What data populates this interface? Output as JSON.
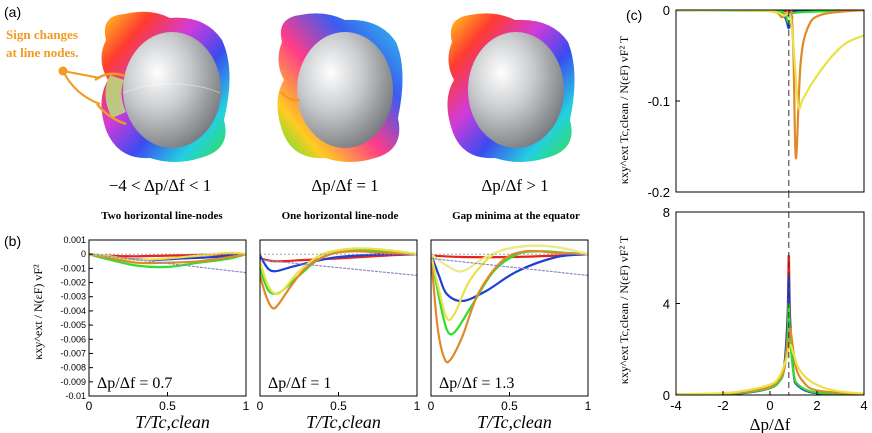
{
  "panel_labels": {
    "a": "(a)",
    "b": "(b)",
    "c": "(c)"
  },
  "annotation": {
    "line1": "Sign changes",
    "line2": "at line nodes."
  },
  "conditions": [
    {
      "label": "−4 < Δp/Δf < 1",
      "caption": "Two horizontal line-nodes"
    },
    {
      "label": "Δp/Δf = 1",
      "caption": "One horizontal line-node"
    },
    {
      "label": "Δp/Δf > 1",
      "caption": "Gap minima at the equator"
    }
  ],
  "colors": {
    "red": "#e8231e",
    "blue": "#1f3fd6",
    "green": "#2ede2a",
    "orange": "#e0892a",
    "yellow": "#e9e146",
    "pale_yellow": "#ecea8a",
    "dotted": "#8a8ac8",
    "annotation": "#f29a22"
  },
  "chart_data": [
    {
      "type": "line",
      "panel": "b",
      "ylabel": "κxy^ext / N(εF) vF² ",
      "xlabel": "T/Tc,clean",
      "xlim": [
        0,
        1
      ],
      "ylim": [
        -0.01,
        0.001
      ],
      "x_ticks": [
        "0",
        "0.5",
        "1"
      ],
      "y_ticks": [
        "0.001",
        "0",
        "-0.001",
        "-0.002",
        "-0.003",
        "-0.004",
        "-0.005",
        "-0.006",
        "-0.007",
        "-0.008",
        "-0.009",
        "-0.01"
      ],
      "subplots": [
        {
          "annotation": "Δp/Δf = 0.7",
          "series": [
            {
              "color": "red",
              "x": [
                0,
                0.1,
                0.3,
                0.5,
                0.7,
                1.0
              ],
              "y": [
                0,
                -0.0001,
                -0.00015,
                -0.0001,
                -5e-05,
                0
              ]
            },
            {
              "color": "blue",
              "x": [
                0,
                0.1,
                0.2,
                0.4,
                0.6,
                0.8,
                1.0
              ],
              "y": [
                0,
                -0.0002,
                -0.0003,
                -0.0004,
                -0.0003,
                -0.0002,
                0
              ]
            },
            {
              "color": "green",
              "x": [
                0,
                0.1,
                0.3,
                0.5,
                0.7,
                0.9,
                1.0
              ],
              "y": [
                0,
                -0.0003,
                -0.0008,
                -0.0009,
                -0.0006,
                -0.0003,
                0
              ]
            },
            {
              "color": "orange",
              "x": [
                0,
                0.1,
                0.3,
                0.5,
                0.7,
                0.9,
                1.0
              ],
              "y": [
                0,
                -0.0002,
                -0.0006,
                -0.0006,
                -0.0005,
                -0.0002,
                0
              ]
            },
            {
              "color": "yellow",
              "x": [
                0,
                0.1,
                0.3,
                0.5,
                0.7,
                0.9,
                1.0
              ],
              "y": [
                0,
                -0.0001,
                -0.0004,
                -0.0003,
                -0.0001,
                0.0001,
                0
              ]
            },
            {
              "color": "dotted",
              "x": [
                0,
                1.0
              ],
              "y": [
                0,
                -0.0013
              ]
            }
          ]
        },
        {
          "annotation": "Δp/Δf = 1",
          "series": [
            {
              "color": "red",
              "x": [
                0,
                0.1,
                0.3,
                0.5,
                0.8,
                1.0
              ],
              "y": [
                -0.0003,
                -0.0005,
                -0.0004,
                -0.0003,
                -0.0001,
                0
              ]
            },
            {
              "color": "blue",
              "x": [
                0,
                0.05,
                0.1,
                0.2,
                0.35,
                0.5,
                0.8,
                1.0
              ],
              "y": [
                -0.0001,
                -0.001,
                -0.0012,
                -0.0009,
                -0.0005,
                -0.0002,
                0,
                0
              ]
            },
            {
              "color": "green",
              "x": [
                0,
                0.05,
                0.1,
                0.15,
                0.25,
                0.4,
                0.6,
                0.8,
                1.0
              ],
              "y": [
                -0.001,
                -0.0025,
                -0.0028,
                -0.0025,
                -0.0015,
                -0.0002,
                0.0003,
                0.0002,
                0
              ]
            },
            {
              "color": "orange",
              "x": [
                0,
                0.04,
                0.08,
                0.12,
                0.2,
                0.3,
                0.45,
                0.6,
                0.8,
                1.0
              ],
              "y": [
                -0.0015,
                -0.003,
                -0.0038,
                -0.0035,
                -0.0022,
                -0.0009,
                0,
                0.0002,
                0.0001,
                0
              ]
            },
            {
              "color": "yellow",
              "x": [
                0,
                0.05,
                0.1,
                0.15,
                0.25,
                0.4,
                0.6,
                0.8,
                1.0
              ],
              "y": [
                -0.0005,
                -0.0022,
                -0.0028,
                -0.0025,
                -0.0012,
                0,
                0.0004,
                0.0003,
                0
              ]
            },
            {
              "color": "dotted",
              "x": [
                0,
                1.0
              ],
              "y": [
                -0.0004,
                -0.0015
              ]
            }
          ]
        },
        {
          "annotation": "Δp/Δf = 1.3",
          "series": [
            {
              "color": "red",
              "x": [
                0,
                0.2,
                0.5,
                0.8,
                1.0
              ],
              "y": [
                -0.0001,
                -0.0002,
                -0.0002,
                -0.0001,
                0
              ]
            },
            {
              "color": "blue",
              "x": [
                0,
                0.05,
                0.1,
                0.2,
                0.35,
                0.55,
                0.8,
                1.0
              ],
              "y": [
                0,
                -0.0015,
                -0.0028,
                -0.0033,
                -0.0026,
                -0.0012,
                -0.0002,
                0
              ]
            },
            {
              "color": "green",
              "x": [
                0,
                0.05,
                0.1,
                0.15,
                0.25,
                0.4,
                0.55,
                0.7,
                0.85,
                1.0
              ],
              "y": [
                0,
                -0.003,
                -0.0053,
                -0.0055,
                -0.0038,
                -0.0012,
                0,
                0.0002,
                0.0001,
                0
              ]
            },
            {
              "color": "orange",
              "x": [
                0,
                0.04,
                0.08,
                0.12,
                0.2,
                0.3,
                0.45,
                0.6,
                0.8,
                1.0
              ],
              "y": [
                0,
                -0.005,
                -0.0072,
                -0.0075,
                -0.0058,
                -0.0028,
                -0.0005,
                0.0002,
                0.0001,
                0
              ]
            },
            {
              "color": "yellow",
              "x": [
                0,
                0.05,
                0.1,
                0.15,
                0.25,
                0.4,
                0.55,
                0.7,
                0.85,
                1.0
              ],
              "y": [
                0,
                -0.0025,
                -0.0045,
                -0.0042,
                -0.0018,
                0,
                0.0005,
                0.0006,
                0.0004,
                0
              ]
            },
            {
              "color": "pale_yellow",
              "x": [
                0,
                0.1,
                0.2,
                0.35,
                0.5,
                0.7,
                0.85,
                1.0
              ],
              "y": [
                0,
                -0.0008,
                -0.0012,
                -0.0002,
                0.0004,
                0.0006,
                0.0004,
                0
              ]
            },
            {
              "color": "dotted",
              "x": [
                0,
                1.0
              ],
              "y": [
                -0.0003,
                -0.0015
              ]
            }
          ]
        }
      ]
    },
    {
      "type": "line",
      "panel": "c-top",
      "ylabel": "κxy^ext Tc,clean / N(εF) vF² T",
      "xlim": [
        -4,
        4
      ],
      "ylim": [
        -0.2,
        0
      ],
      "y_ticks": [
        "0",
        "-0.1",
        "-0.2"
      ],
      "x_ticks": [
        "-4",
        "-2",
        "0",
        "2",
        "4"
      ],
      "vline": 0.8,
      "series": [
        {
          "color": "red",
          "x": [
            -4,
            0,
            0.6,
            0.8,
            1.0,
            4
          ],
          "y": [
            0,
            0,
            -0.001,
            -0.002,
            -0.001,
            0
          ]
        },
        {
          "color": "blue",
          "x": [
            -4,
            0,
            0.5,
            0.7,
            0.8,
            0.9,
            1.0,
            4
          ],
          "y": [
            0,
            0,
            -0.002,
            -0.012,
            -0.02,
            -0.01,
            -0.002,
            0
          ]
        },
        {
          "color": "green",
          "x": [
            -4,
            0,
            0.6,
            0.75,
            0.85,
            0.95,
            1.1,
            4
          ],
          "y": [
            0,
            -0.001,
            -0.004,
            -0.012,
            -0.015,
            -0.008,
            -0.003,
            0
          ]
        },
        {
          "color": "orange",
          "x": [
            -4,
            -1,
            0.2,
            0.5,
            0.7,
            0.9,
            1.0,
            1.1,
            1.3,
            1.6,
            2.2,
            4
          ],
          "y": [
            0,
            0,
            -0.002,
            -0.008,
            -0.004,
            0,
            -0.05,
            -0.163,
            -0.06,
            -0.02,
            -0.005,
            0
          ]
        },
        {
          "color": "yellow",
          "x": [
            -4,
            -1,
            0.2,
            0.6,
            0.85,
            1.0,
            1.2,
            1.4,
            1.8,
            2.5,
            3.2,
            4
          ],
          "y": [
            0,
            0,
            -0.002,
            -0.006,
            -0.006,
            -0.04,
            -0.105,
            -0.098,
            -0.08,
            -0.055,
            -0.037,
            -0.028
          ]
        }
      ]
    },
    {
      "type": "line",
      "panel": "c-bottom",
      "ylabel": "κxy^ext Tc,clean / N(εF) vF² T",
      "xlabel": "Δp/Δf",
      "xlim": [
        -4,
        4
      ],
      "ylim": [
        0,
        8
      ],
      "y_ticks": [
        "8",
        "4",
        "0"
      ],
      "x_ticks": [
        "-4",
        "-2",
        "0",
        "2",
        "4"
      ],
      "vline": 0.8,
      "series": [
        {
          "color": "red",
          "x": [
            -4,
            -2,
            -1,
            0,
            0.4,
            0.6,
            0.75,
            0.8,
            0.85,
            1.0,
            1.2,
            2,
            4
          ],
          "y": [
            0.02,
            0.05,
            0.1,
            0.3,
            0.6,
            1.2,
            3.5,
            6.1,
            3.5,
            1.0,
            0.4,
            0.08,
            0.02
          ]
        },
        {
          "color": "blue",
          "x": [
            -4,
            -2,
            -1,
            0,
            0.4,
            0.6,
            0.75,
            0.8,
            0.85,
            1.0,
            1.2,
            2,
            4
          ],
          "y": [
            0.02,
            0.05,
            0.1,
            0.3,
            0.6,
            1.2,
            3.2,
            5.2,
            3.2,
            1.0,
            0.4,
            0.08,
            0.02
          ]
        },
        {
          "color": "green",
          "x": [
            -4,
            -2,
            -1,
            0,
            0.4,
            0.6,
            0.75,
            0.8,
            0.85,
            1.0,
            1.2,
            2,
            4
          ],
          "y": [
            0.02,
            0.05,
            0.12,
            0.3,
            0.6,
            1.1,
            2.6,
            4.0,
            2.6,
            1.0,
            0.45,
            0.1,
            0.02
          ]
        },
        {
          "color": "orange",
          "x": [
            -4,
            -2,
            -1,
            0,
            0.4,
            0.6,
            0.75,
            0.85,
            0.95,
            1.1,
            1.4,
            2,
            4
          ],
          "y": [
            0.02,
            0.06,
            0.15,
            0.35,
            0.7,
            1.1,
            2.2,
            2.9,
            2.3,
            1.2,
            0.6,
            0.2,
            0.03
          ]
        },
        {
          "color": "yellow",
          "x": [
            -4,
            -2,
            -1,
            0,
            0.4,
            0.7,
            0.85,
            1.0,
            1.2,
            1.6,
            2.2,
            3,
            4
          ],
          "y": [
            0.03,
            0.08,
            0.2,
            0.45,
            0.8,
            1.6,
            2.2,
            1.8,
            1.2,
            0.7,
            0.35,
            0.15,
            0.06
          ]
        }
      ]
    }
  ]
}
